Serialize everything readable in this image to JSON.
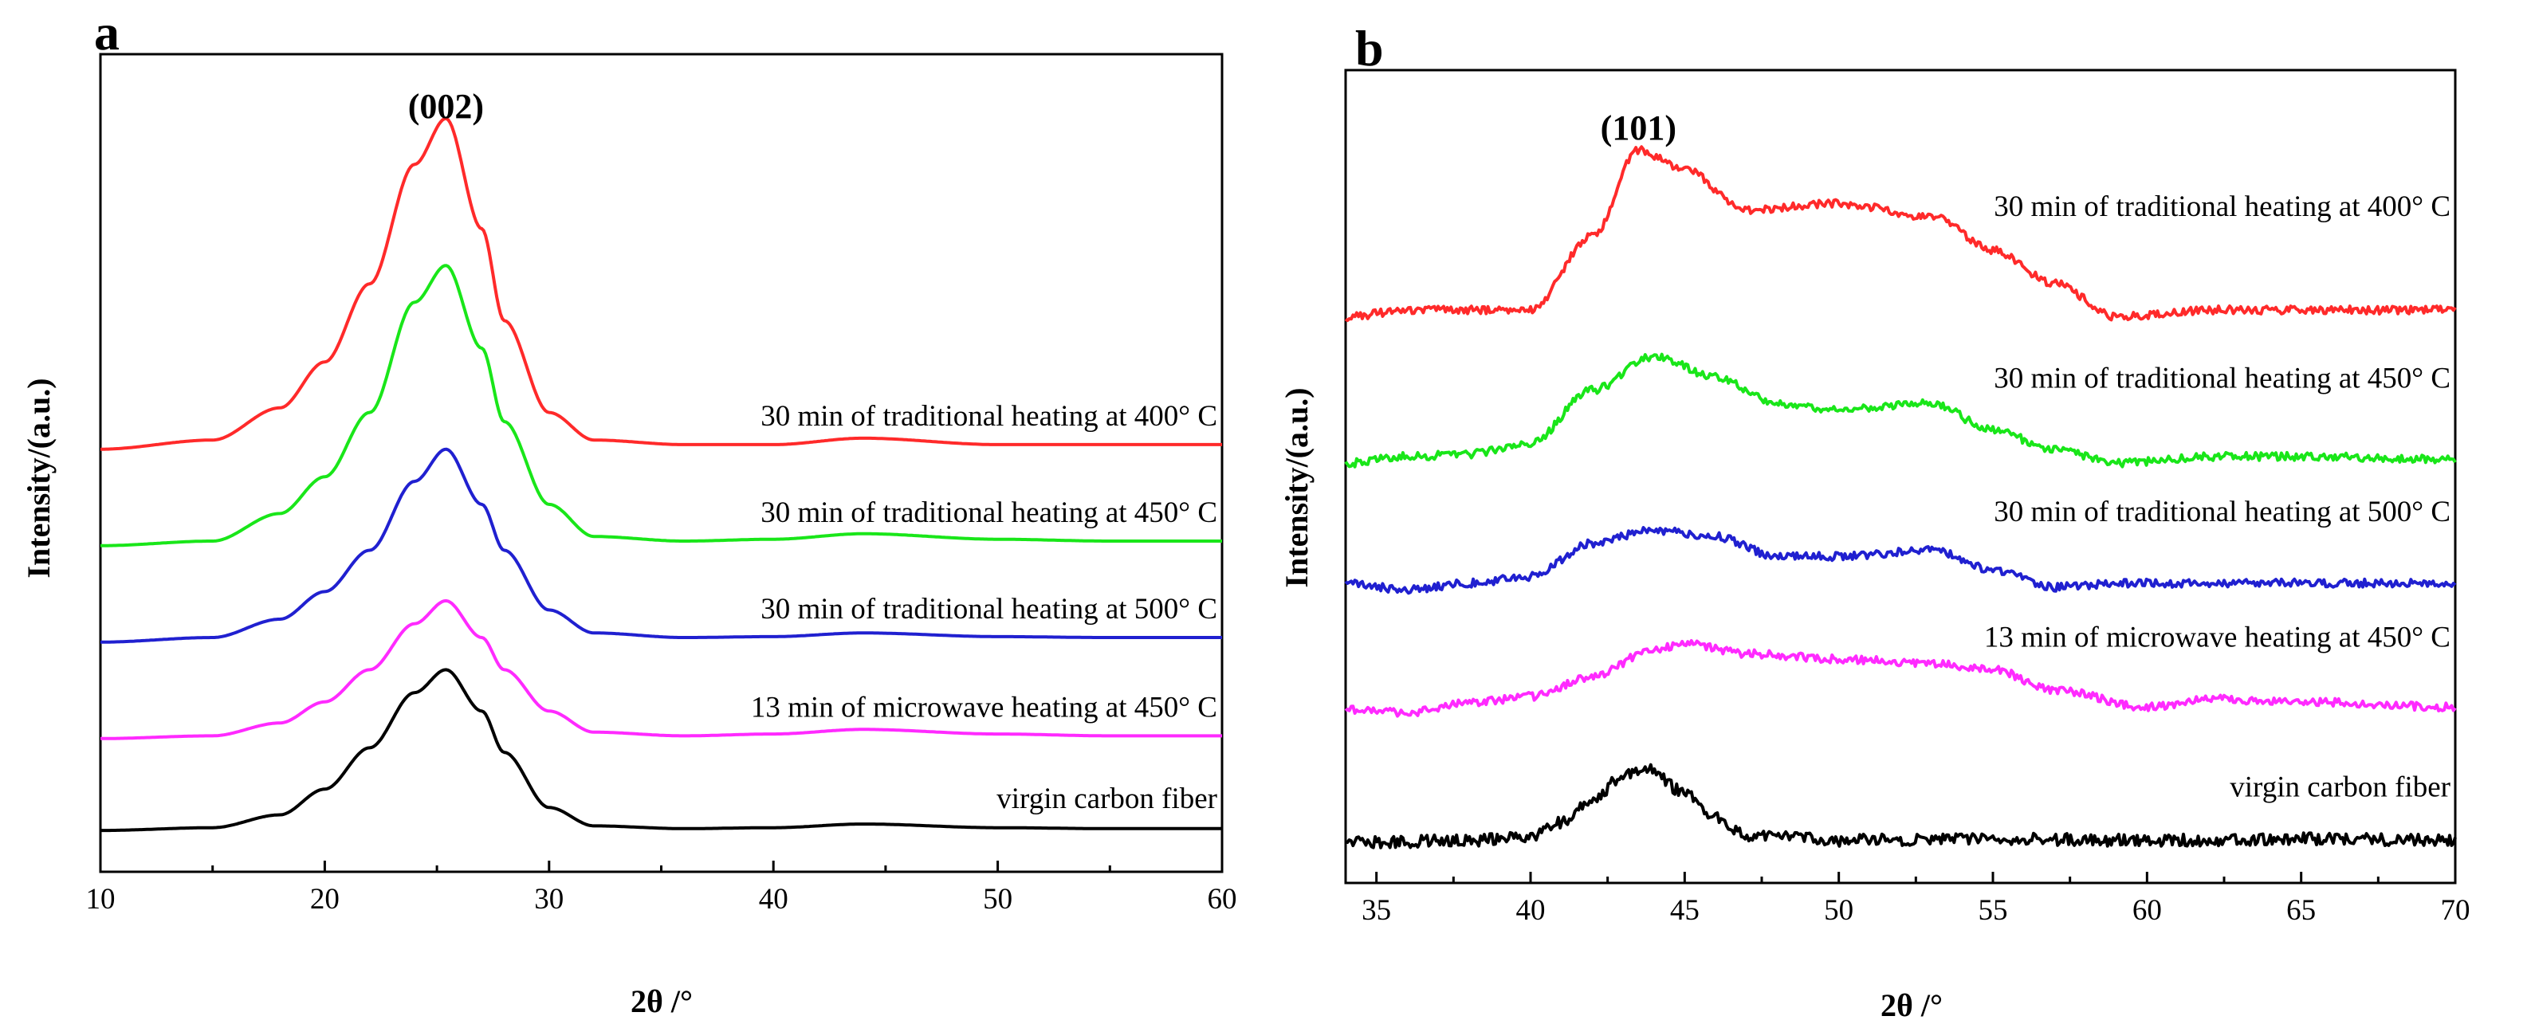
{
  "chart_data": [
    {
      "panel_label": "a",
      "type": "line",
      "xlabel": "2θ /°",
      "ylabel": "Intensity/(a.u.)",
      "xlim": [
        10,
        60
      ],
      "xticks": [
        10,
        20,
        30,
        40,
        50,
        60
      ],
      "grid": false,
      "annotations": [
        {
          "text": "(002)",
          "x": 25.4
        }
      ],
      "series": [
        {
          "name": "30 min of traditional heating at 400° C",
          "color": "#ff2a2a",
          "peak_x": 25.4,
          "x": [
            10,
            15,
            18,
            20,
            22,
            24,
            25.4,
            27,
            28,
            30,
            32,
            36,
            40,
            44,
            50,
            55,
            60
          ],
          "y": [
            4.6,
            4.7,
            5.05,
            5.55,
            6.4,
            7.7,
            8.2,
            7.0,
            6.0,
            5.0,
            4.7,
            4.65,
            4.65,
            4.72,
            4.65,
            4.65,
            4.65
          ]
        },
        {
          "name": "30 min of traditional heating at 450° C",
          "color": "#19e619",
          "peak_x": 25.4,
          "x": [
            10,
            15,
            18,
            20,
            22,
            24,
            25.4,
            27,
            28,
            30,
            32,
            36,
            40,
            44,
            50,
            55,
            60
          ],
          "y": [
            3.55,
            3.6,
            3.9,
            4.3,
            5.0,
            6.2,
            6.6,
            5.7,
            4.9,
            4.0,
            3.65,
            3.6,
            3.62,
            3.68,
            3.62,
            3.6,
            3.6
          ]
        },
        {
          "name": "30 min of traditional heating at 500° C",
          "color": "#2020d0",
          "peak_x": 25.4,
          "x": [
            10,
            15,
            18,
            20,
            22,
            24,
            25.4,
            27,
            28,
            30,
            32,
            36,
            40,
            44,
            50,
            55,
            60
          ],
          "y": [
            2.5,
            2.55,
            2.75,
            3.05,
            3.5,
            4.25,
            4.6,
            4.0,
            3.5,
            2.85,
            2.6,
            2.55,
            2.56,
            2.6,
            2.56,
            2.55,
            2.55
          ]
        },
        {
          "name": "13 min of microwave heating at 450° C",
          "color": "#ff2aff",
          "peak_x": 25.4,
          "x": [
            10,
            15,
            18,
            20,
            22,
            24,
            25.4,
            27,
            28,
            30,
            32,
            36,
            40,
            44,
            50,
            55,
            60
          ],
          "y": [
            1.45,
            1.48,
            1.62,
            1.85,
            2.2,
            2.7,
            2.95,
            2.55,
            2.2,
            1.75,
            1.52,
            1.48,
            1.5,
            1.55,
            1.5,
            1.48,
            1.48
          ]
        },
        {
          "name": "virgin carbon fiber",
          "color": "#000000",
          "peak_x": 25.4,
          "x": [
            10,
            15,
            18,
            20,
            22,
            24,
            25.4,
            27,
            28,
            30,
            32,
            36,
            40,
            44,
            50,
            55,
            60
          ],
          "y": [
            0.45,
            0.48,
            0.62,
            0.9,
            1.35,
            1.95,
            2.2,
            1.75,
            1.3,
            0.7,
            0.5,
            0.47,
            0.48,
            0.52,
            0.48,
            0.47,
            0.47
          ]
        }
      ]
    },
    {
      "panel_label": "b",
      "type": "line",
      "xlabel": "2θ /°",
      "ylabel": "Intensity/(a.u.)",
      "xlim": [
        34,
        70
      ],
      "xticks": [
        35,
        40,
        45,
        50,
        55,
        60,
        65,
        70
      ],
      "grid": false,
      "annotations": [
        {
          "text": "(101)",
          "x": 43.5
        }
      ],
      "series": [
        {
          "name": "30 min of traditional heating at 400° C",
          "color": "#ff2a2a",
          "x": [
            34,
            36,
            38,
            40,
            42,
            43.5,
            45,
            47,
            50,
            53,
            55,
            57,
            59,
            62,
            65,
            70
          ],
          "y": [
            4.25,
            4.3,
            4.3,
            4.3,
            4.85,
            5.5,
            5.35,
            5.05,
            5.1,
            5.0,
            4.75,
            4.5,
            4.25,
            4.3,
            4.3,
            4.3
          ]
        },
        {
          "name": "30 min of traditional heating at 450° C",
          "color": "#19e619",
          "x": [
            34,
            36,
            38,
            40,
            42,
            44,
            46,
            48,
            50,
            53,
            55,
            57,
            59,
            62,
            65,
            70
          ],
          "y": [
            3.15,
            3.2,
            3.22,
            3.3,
            3.7,
            3.95,
            3.8,
            3.6,
            3.55,
            3.6,
            3.4,
            3.25,
            3.15,
            3.2,
            3.2,
            3.18
          ]
        },
        {
          "name": "30 min of traditional heating at 500° C",
          "color": "#2020d0",
          "x": [
            34,
            36,
            38,
            40,
            42,
            44,
            46,
            48,
            50,
            53,
            55,
            57,
            59,
            62,
            65,
            70
          ],
          "y": [
            2.25,
            2.2,
            2.25,
            2.3,
            2.55,
            2.65,
            2.6,
            2.45,
            2.45,
            2.5,
            2.35,
            2.22,
            2.25,
            2.25,
            2.25,
            2.25
          ]
        },
        {
          "name": "13 min of microwave heating at 450° C",
          "color": "#ff2aff",
          "x": [
            34,
            36,
            38,
            40,
            42,
            44,
            45,
            47,
            50,
            53,
            55,
            57,
            60,
            62,
            65,
            70
          ],
          "y": [
            1.3,
            1.28,
            1.35,
            1.4,
            1.55,
            1.75,
            1.8,
            1.72,
            1.68,
            1.65,
            1.6,
            1.45,
            1.32,
            1.38,
            1.36,
            1.32
          ]
        },
        {
          "name": "virgin carbon fiber",
          "color": "#000000",
          "x": [
            34,
            38,
            40,
            41,
            42,
            43,
            43.8,
            45,
            46,
            47,
            50,
            55,
            60,
            65,
            70
          ],
          "y": [
            0.3,
            0.32,
            0.35,
            0.45,
            0.62,
            0.8,
            0.85,
            0.68,
            0.5,
            0.36,
            0.32,
            0.33,
            0.32,
            0.33,
            0.32
          ]
        }
      ]
    }
  ]
}
